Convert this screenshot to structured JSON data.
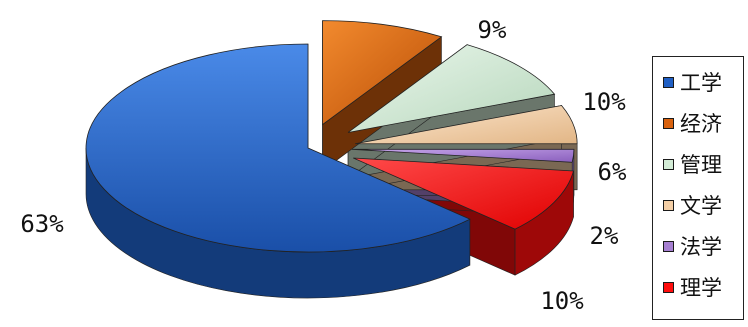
{
  "chart_data": {
    "type": "pie",
    "style": "3d-exploded",
    "title": "",
    "legend_position": "right",
    "categories": [
      "工学",
      "经济",
      "管理",
      "文学",
      "法学",
      "理学"
    ],
    "values": [
      63,
      9,
      10,
      6,
      2,
      10
    ],
    "labels": [
      "63%",
      "9%",
      "10%",
      "6%",
      "2%",
      "10%"
    ],
    "colors": [
      "#1f5fc4",
      "#d9620e",
      "#d3ecd6",
      "#f4cfa6",
      "#a67fd1",
      "#ff0d0d"
    ]
  }
}
